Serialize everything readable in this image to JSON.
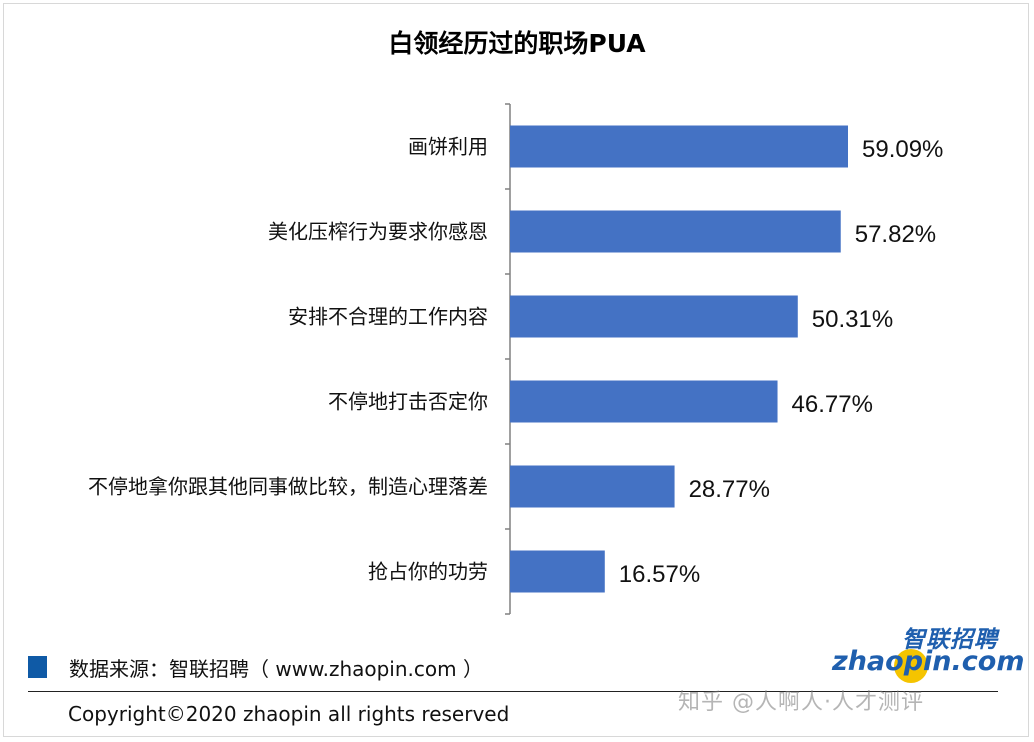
{
  "title": "白领经历过的职场PUA",
  "chart_data": {
    "type": "bar",
    "orientation": "horizontal",
    "title": "白领经历过的职场PUA",
    "categories": [
      "画饼利用",
      "美化压榨行为要求你感恩",
      "安排不合理的工作内容",
      "不停地打击否定你",
      "不停地拿你跟其他同事做比较，制造心理落差",
      "抢占你的功劳"
    ],
    "values": [
      59.09,
      57.82,
      50.31,
      46.77,
      28.77,
      16.57
    ],
    "value_labels": [
      "59.09%",
      "57.82%",
      "50.31%",
      "46.77%",
      "28.77%",
      "16.57%"
    ],
    "xlim": [
      0,
      100
    ],
    "grid": false,
    "bar_color": "#4472c4"
  },
  "legend": {
    "swatch_color": "#0f5aa6",
    "text": "数据来源：智联招聘（ www.zhaopin.com ）"
  },
  "copyright": "Copyright©2020 zhaopin all rights reserved",
  "logo": {
    "cn": "智联招聘",
    "en": "zhaopin.com"
  },
  "watermark": "知乎 @人啊人·人才测评"
}
